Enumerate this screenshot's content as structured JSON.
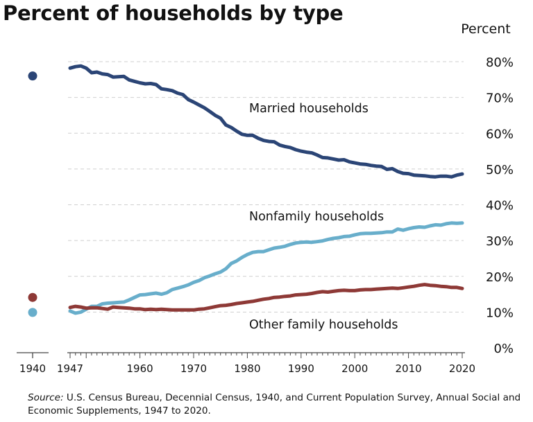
{
  "chart_data": {
    "type": "line",
    "title": "Percent of households by type",
    "ylabel": "Percent",
    "ylim": [
      0,
      80
    ],
    "y_ticks": [
      0,
      10,
      20,
      30,
      40,
      50,
      60,
      70,
      80
    ],
    "y_tick_labels": [
      "0%",
      "10%",
      "20%",
      "30%",
      "40%",
      "50%",
      "60%",
      "70%",
      "80%"
    ],
    "x_tick_labels": [
      "1940",
      "1947",
      "1960",
      "1970",
      "1980",
      "1990",
      "2000",
      "2010",
      "2020"
    ],
    "x_ticks": [
      1940,
      1947,
      1960,
      1970,
      1980,
      1990,
      2000,
      2010,
      2020
    ],
    "grid": true,
    "colors": {
      "married": "#2b4576",
      "nonfamily": "#68aecb",
      "other": "#8e3936"
    },
    "series": [
      {
        "name": "Married households",
        "key": "married",
        "points_1940": 76,
        "x": [
          1947,
          1948,
          1949,
          1950,
          1951,
          1952,
          1953,
          1954,
          1955,
          1956,
          1957,
          1958,
          1959,
          1960,
          1961,
          1962,
          1963,
          1964,
          1965,
          1966,
          1967,
          1968,
          1969,
          1970,
          1971,
          1972,
          1973,
          1974,
          1975,
          1976,
          1977,
          1978,
          1979,
          1980,
          1981,
          1982,
          1983,
          1984,
          1985,
          1986,
          1987,
          1988,
          1989,
          1990,
          1991,
          1992,
          1993,
          1994,
          1995,
          1996,
          1997,
          1998,
          1999,
          2000,
          2001,
          2002,
          2003,
          2004,
          2005,
          2006,
          2007,
          2008,
          2009,
          2010,
          2011,
          2012,
          2013,
          2014,
          2015,
          2016,
          2017,
          2018,
          2019,
          2020
        ],
        "values": [
          78.2,
          78.6,
          78.8,
          78.2,
          76.9,
          77.1,
          76.6,
          76.4,
          75.7,
          75.8,
          75.9,
          74.9,
          74.5,
          74.1,
          73.8,
          73.9,
          73.6,
          72.4,
          72.2,
          71.9,
          71.2,
          70.8,
          69.4,
          68.7,
          67.9,
          67.1,
          66.1,
          65.0,
          64.2,
          62.3,
          61.6,
          60.6,
          59.7,
          59.4,
          59.4,
          58.6,
          58.0,
          57.7,
          57.6,
          56.7,
          56.3,
          56.0,
          55.4,
          55.0,
          54.7,
          54.5,
          53.9,
          53.2,
          53.1,
          52.8,
          52.5,
          52.6,
          52.0,
          51.7,
          51.4,
          51.3,
          51.0,
          50.8,
          50.7,
          49.9,
          50.1,
          49.3,
          48.8,
          48.7,
          48.3,
          48.2,
          48.1,
          47.9,
          47.8,
          48.0,
          48.0,
          47.8,
          48.3,
          48.6
        ]
      },
      {
        "name": "Nonfamily households",
        "key": "nonfamily",
        "points_1940": 9.9,
        "x": [
          1947,
          1948,
          1949,
          1950,
          1951,
          1952,
          1953,
          1954,
          1955,
          1956,
          1957,
          1958,
          1959,
          1960,
          1961,
          1962,
          1963,
          1964,
          1965,
          1966,
          1967,
          1968,
          1969,
          1970,
          1971,
          1972,
          1973,
          1974,
          1975,
          1976,
          1977,
          1978,
          1979,
          1980,
          1981,
          1982,
          1983,
          1984,
          1985,
          1986,
          1987,
          1988,
          1989,
          1990,
          1991,
          1992,
          1993,
          1994,
          1995,
          1996,
          1997,
          1998,
          1999,
          2000,
          2001,
          2002,
          2003,
          2004,
          2005,
          2006,
          2007,
          2008,
          2009,
          2010,
          2011,
          2012,
          2013,
          2014,
          2015,
          2016,
          2017,
          2018,
          2019,
          2020
        ],
        "values": [
          10.3,
          9.7,
          10.0,
          10.8,
          11.6,
          11.6,
          12.3,
          12.5,
          12.6,
          12.7,
          12.8,
          13.4,
          14.1,
          14.8,
          14.9,
          15.1,
          15.3,
          15.0,
          15.4,
          16.3,
          16.7,
          17.1,
          17.6,
          18.3,
          18.8,
          19.6,
          20.1,
          20.7,
          21.2,
          22.1,
          23.6,
          24.3,
          25.3,
          26.1,
          26.7,
          26.9,
          26.9,
          27.4,
          27.9,
          28.1,
          28.4,
          28.9,
          29.3,
          29.5,
          29.6,
          29.5,
          29.7,
          29.9,
          30.3,
          30.6,
          30.8,
          31.1,
          31.2,
          31.6,
          31.9,
          32.0,
          32.0,
          32.1,
          32.2,
          32.4,
          32.4,
          33.2,
          32.9,
          33.3,
          33.6,
          33.8,
          33.7,
          34.1,
          34.4,
          34.3,
          34.7,
          34.9,
          34.8,
          34.9
        ]
      },
      {
        "name": "Other family households",
        "key": "other",
        "points_1940": 14.1,
        "x": [
          1947,
          1948,
          1949,
          1950,
          1951,
          1952,
          1953,
          1954,
          1955,
          1956,
          1957,
          1958,
          1959,
          1960,
          1961,
          1962,
          1963,
          1964,
          1965,
          1966,
          1967,
          1968,
          1969,
          1970,
          1971,
          1972,
          1973,
          1974,
          1975,
          1976,
          1977,
          1978,
          1979,
          1980,
          1981,
          1982,
          1983,
          1984,
          1985,
          1986,
          1987,
          1988,
          1989,
          1990,
          1991,
          1992,
          1993,
          1994,
          1995,
          1996,
          1997,
          1998,
          1999,
          2000,
          2001,
          2002,
          2003,
          2004,
          2005,
          2006,
          2007,
          2008,
          2009,
          2010,
          2011,
          2012,
          2013,
          2014,
          2015,
          2016,
          2017,
          2018,
          2019,
          2020
        ],
        "values": [
          11.3,
          11.6,
          11.4,
          11.1,
          11.2,
          11.2,
          11.0,
          10.8,
          11.4,
          11.3,
          11.2,
          11.1,
          10.9,
          10.9,
          10.7,
          10.8,
          10.7,
          10.8,
          10.7,
          10.6,
          10.6,
          10.6,
          10.6,
          10.6,
          10.8,
          10.9,
          11.2,
          11.5,
          11.8,
          11.9,
          12.1,
          12.4,
          12.6,
          12.8,
          13.0,
          13.3,
          13.6,
          13.8,
          14.1,
          14.2,
          14.4,
          14.5,
          14.8,
          14.9,
          15.0,
          15.2,
          15.5,
          15.7,
          15.6,
          15.8,
          16.0,
          16.1,
          16.0,
          16.0,
          16.2,
          16.3,
          16.3,
          16.4,
          16.5,
          16.6,
          16.7,
          16.6,
          16.8,
          17.0,
          17.2,
          17.5,
          17.7,
          17.5,
          17.4,
          17.2,
          17.1,
          16.9,
          16.9,
          16.6
        ]
      }
    ],
    "annotations": [
      {
        "text": "Married households",
        "series": "married"
      },
      {
        "text": "Nonfamily households",
        "series": "nonfamily"
      },
      {
        "text": "Other family households",
        "series": "other"
      }
    ]
  },
  "source": {
    "label": "Source:",
    "text": " U.S. Census Bureau, Decennial Census, 1940, and Current Population Survey, Annual Social and Economic Supplements, 1947 to 2020."
  }
}
